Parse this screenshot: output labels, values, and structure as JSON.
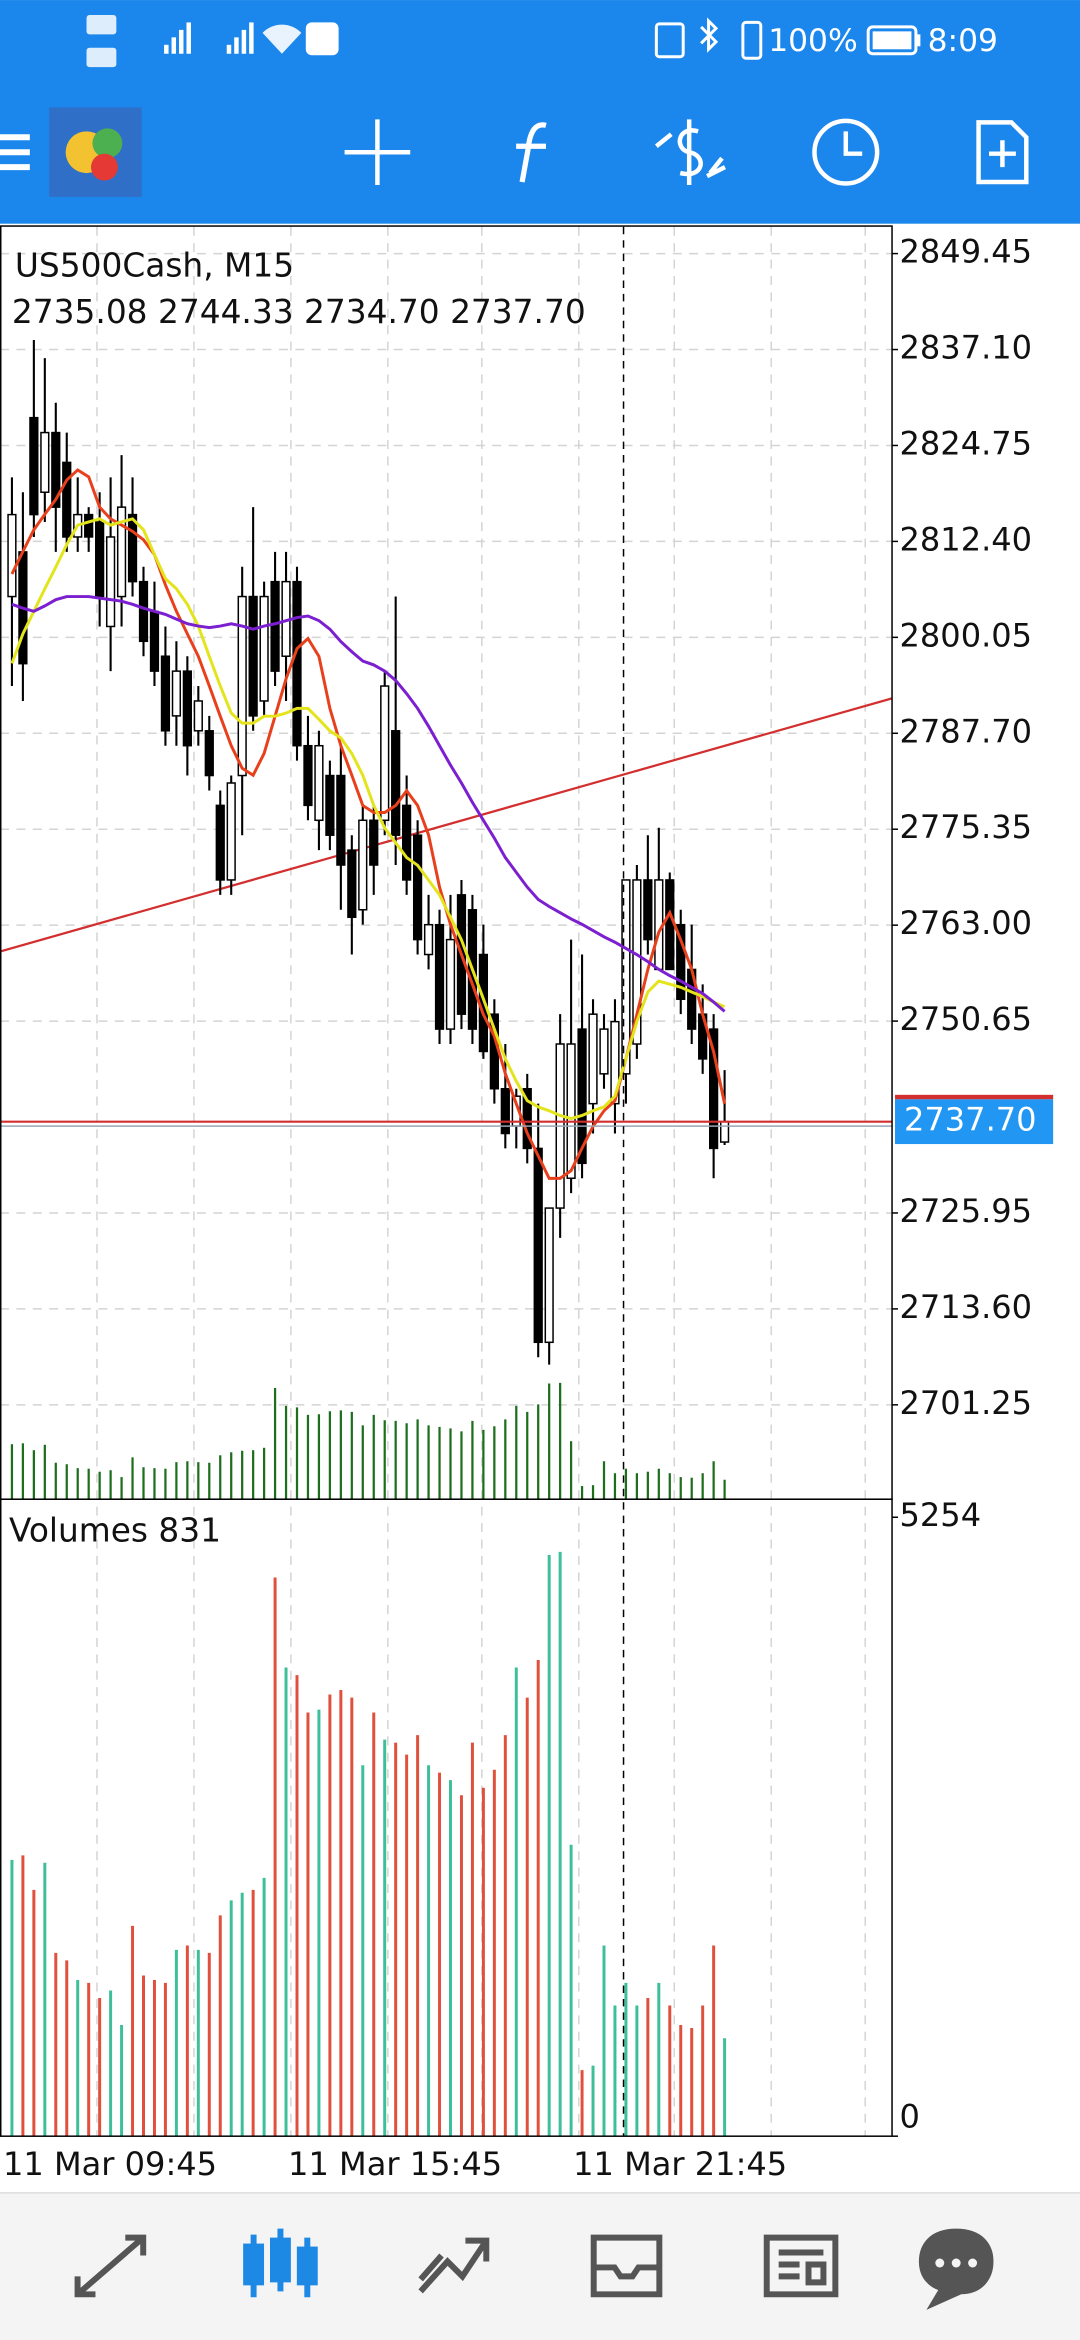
{
  "status_bar": {
    "battery": "100%",
    "time": "8:09"
  },
  "chart_data": [
    {
      "type": "candlestick",
      "title": "US500Cash, M15",
      "subtitle": "2735.08 2744.33 2734.70 2737.70",
      "categories": [
        "11 Mar 09:45",
        null,
        null,
        null,
        null,
        null,
        null,
        null,
        null,
        null,
        null,
        null,
        null,
        null,
        null,
        null,
        null,
        null,
        null,
        null,
        null,
        null,
        null,
        null,
        null,
        null,
        "11 Mar 15:45",
        null,
        null,
        null,
        null,
        null,
        null,
        null,
        null,
        null,
        null,
        null,
        null,
        null,
        null,
        null,
        null,
        null,
        null,
        null,
        null,
        null,
        null,
        null,
        null,
        null,
        "11 Mar 21:45",
        null,
        null,
        null,
        null,
        null,
        null,
        null,
        null,
        null,
        null,
        null,
        null,
        null
      ],
      "open": [
        2805.3,
        2811.05,
        2828.33,
        2818.73,
        2826.41,
        2822.57,
        2812.97,
        2815.85,
        2814.9,
        2801.45,
        2805.3,
        2815.85,
        2807.22,
        2803.37,
        2797.62,
        2789.94,
        2795.7,
        2788.02,
        2788.02,
        2778.42,
        2768.82,
        2782.26,
        2805.3,
        2791.86,
        2807.22,
        2797.62,
        2807.22,
        2786.1,
        2776.5,
        2782.26,
        2782.26,
        2772.66,
        2764.98,
        2776.5,
        2776.5,
        2788.02,
        2778.42,
        2774.58,
        2759.22,
        2763.06,
        2749.62,
        2766.9,
        2764.98,
        2759.22,
        2751.54,
        2741.94,
        2737.14,
        2741.94,
        2734.26,
        2709.3,
        2726.58,
        2730.42,
        2749.62,
        2740.02,
        2743.86,
        2740.02,
        2743.86,
        2747.7,
        2768.82,
        2757.3,
        2768.82,
        2763.06,
        2757.3,
        2751.54,
        2749.62,
        2735.08
      ],
      "high": [
        2820.65,
        2818.73,
        2838.32,
        2836.0,
        2830.25,
        2826.41,
        2820.65,
        2816.81,
        2818.73,
        2820.65,
        2823.5,
        2820.65,
        2809.13,
        2807.22,
        2801.45,
        2799.54,
        2797.62,
        2793.78,
        2789.94,
        2780.34,
        2782.26,
        2809.13,
        2816.81,
        2807.22,
        2811.05,
        2811.05,
        2809.13,
        2789.94,
        2788.02,
        2784.18,
        2786.1,
        2774.58,
        2778.42,
        2778.42,
        2795.7,
        2805.3,
        2782.26,
        2776.5,
        2766.9,
        2764.98,
        2766.9,
        2768.82,
        2766.9,
        2763.06,
        2753.46,
        2747.7,
        2741.94,
        2743.86,
        2740.02,
        2726.58,
        2751.54,
        2761.14,
        2759.22,
        2753.46,
        2751.54,
        2753.46,
        2768.82,
        2770.74,
        2774.58,
        2775.54,
        2769.78,
        2764.98,
        2763.06,
        2755.38,
        2751.54,
        2744.33
      ],
      "low": [
        2793.78,
        2791.86,
        2812.97,
        2814.9,
        2811.05,
        2811.05,
        2811.05,
        2811.05,
        2801.45,
        2795.7,
        2801.45,
        2805.3,
        2797.62,
        2793.78,
        2786.1,
        2786.1,
        2782.26,
        2786.1,
        2780.34,
        2766.9,
        2766.9,
        2774.58,
        2788.02,
        2789.94,
        2793.78,
        2791.86,
        2784.18,
        2776.5,
        2772.66,
        2772.66,
        2764.98,
        2759.22,
        2763.06,
        2766.9,
        2774.58,
        2770.74,
        2766.9,
        2759.22,
        2757.3,
        2747.7,
        2747.7,
        2749.62,
        2747.7,
        2745.78,
        2740.02,
        2734.26,
        2734.26,
        2732.34,
        2707.38,
        2706.43,
        2722.74,
        2728.5,
        2730.42,
        2736.18,
        2741.94,
        2736.18,
        2740.02,
        2745.78,
        2759.22,
        2757.3,
        2757.3,
        2751.54,
        2747.7,
        2743.86,
        2730.42,
        2734.7
      ],
      "close": [
        2815.85,
        2796.66,
        2815.85,
        2826.41,
        2816.81,
        2812.97,
        2815.85,
        2812.97,
        2805.3,
        2812.97,
        2816.81,
        2807.22,
        2799.54,
        2795.7,
        2788.02,
        2795.7,
        2786.1,
        2791.86,
        2782.26,
        2768.82,
        2781.3,
        2805.3,
        2789.94,
        2805.3,
        2795.7,
        2807.22,
        2786.1,
        2778.42,
        2786.1,
        2774.58,
        2770.74,
        2764.02,
        2776.5,
        2770.74,
        2793.78,
        2774.58,
        2768.82,
        2761.14,
        2763.06,
        2749.62,
        2761.14,
        2751.54,
        2749.62,
        2746.74,
        2741.94,
        2736.18,
        2740.98,
        2734.26,
        2709.3,
        2726.58,
        2747.7,
        2747.7,
        2732.34,
        2751.54,
        2749.62,
        2750.58,
        2768.82,
        2768.82,
        2761.14,
        2768.82,
        2757.3,
        2753.46,
        2749.62,
        2745.78,
        2734.26,
        2737.7
      ],
      "up_color": "#ffffff",
      "down_color": "#000000",
      "series": [
        {
          "color": "#e8401c",
          "values": [
            2808.2,
            2811.1,
            2813.9,
            2815.9,
            2817.8,
            2820.3,
            2821.6,
            2820.7,
            2816.8,
            2815.3,
            2814.5,
            2813.7,
            2812.6,
            2810.7,
            2806.8,
            2803.4,
            2800.5,
            2797.6,
            2793.8,
            2789.9,
            2786.1,
            2783.2,
            2782.3,
            2785.1,
            2789.9,
            2794.7,
            2798.6,
            2799.9,
            2797.6,
            2790.9,
            2786.1,
            2782.3,
            2778.4,
            2777.5,
            2777.5,
            2778.4,
            2780.3,
            2778.4,
            2774.6,
            2767.9,
            2763.1,
            2759.2,
            2755.4,
            2751.5,
            2748.7,
            2743.9,
            2740.0,
            2736.2,
            2733.3,
            2730.4,
            2730.4,
            2731.4,
            2734.3,
            2737.1,
            2739.1,
            2740.4,
            2745.8,
            2751.5,
            2757.3,
            2762.1,
            2764.6,
            2761.1,
            2757.3,
            2751.5,
            2746.7,
            2740.0
          ]
        },
        {
          "color": "#e4e41c",
          "values": [
            2796.7,
            2800.5,
            2803.4,
            2806.3,
            2809.1,
            2812.0,
            2814.5,
            2814.9,
            2815.3,
            2814.5,
            2814.9,
            2815.3,
            2813.9,
            2810.7,
            2807.6,
            2806.3,
            2804.3,
            2801.5,
            2797.6,
            2793.8,
            2790.3,
            2789.0,
            2789.0,
            2789.9,
            2789.9,
            2790.3,
            2790.9,
            2790.9,
            2789.5,
            2788.0,
            2787.1,
            2785.1,
            2782.3,
            2778.4,
            2775.5,
            2773.6,
            2771.7,
            2770.7,
            2768.8,
            2766.9,
            2764.0,
            2761.1,
            2757.3,
            2753.5,
            2749.6,
            2745.8,
            2742.9,
            2740.4,
            2739.6,
            2739.1,
            2738.5,
            2738.1,
            2738.5,
            2739.1,
            2739.6,
            2741.0,
            2745.8,
            2750.6,
            2754.4,
            2755.8,
            2755.4,
            2755.0,
            2754.4,
            2753.8,
            2753.1,
            2752.5
          ]
        },
        {
          "color": "#7b1fd0",
          "values": [
            2804.3,
            2803.8,
            2803.4,
            2804.1,
            2804.9,
            2805.3,
            2805.3,
            2805.3,
            2805.1,
            2804.9,
            2804.7,
            2804.3,
            2803.8,
            2803.4,
            2803.0,
            2802.4,
            2801.8,
            2801.5,
            2801.3,
            2801.5,
            2801.8,
            2801.5,
            2801.1,
            2801.5,
            2801.8,
            2802.2,
            2802.6,
            2802.8,
            2802.2,
            2801.1,
            2799.5,
            2798.2,
            2797.0,
            2796.5,
            2795.7,
            2794.5,
            2792.8,
            2790.9,
            2788.6,
            2786.1,
            2783.6,
            2781.3,
            2778.8,
            2776.5,
            2774.2,
            2771.7,
            2769.8,
            2767.9,
            2766.3,
            2765.4,
            2764.6,
            2763.8,
            2763.1,
            2762.3,
            2761.5,
            2760.8,
            2760.0,
            2759.2,
            2758.3,
            2757.3,
            2756.5,
            2755.8,
            2755.0,
            2754.2,
            2753.1,
            2751.9
          ]
        }
      ],
      "trendline": {
        "color": "#d32f2f",
        "values": [
          2759.6,
          2792.2
        ]
      },
      "price_line": {
        "value": 2737.7,
        "label": "2737.70",
        "color": "#d32f2f",
        "label_color": "#2196f3"
      },
      "ylim": [
        2689.1,
        2852.9
      ],
      "yticks": [
        2849.45,
        {
          "value": 2837.1,
          "label": "2837.10"
        },
        2824.75,
        {
          "value": 2812.4,
          "label": "2812.40"
        },
        2800.05,
        {
          "value": 2787.7,
          "label": "2787.70"
        },
        2775.35,
        {
          "value": 2763,
          "label": "2763.00"
        },
        2750.65,
        2725.95,
        {
          "value": 2713.6,
          "label": "2713.60"
        },
        2701.25
      ],
      "grid": true
    },
    {
      "type": "bar",
      "title": "Volumes 831",
      "values": [
        2346,
        2384,
        2091,
        2321,
        1556,
        1492,
        1326,
        1301,
        1173,
        1237,
        944,
        1785,
        1364,
        1326,
        1301,
        1581,
        1619,
        1581,
        1556,
        1874,
        2002,
        2066,
        2091,
        2193,
        4743,
        3978,
        3914,
        3596,
        3621,
        3749,
        3787,
        3723,
        3149,
        3596,
        3366,
        3341,
        3239,
        3404,
        3149,
        3086,
        3022,
        2894,
        3341,
        2958,
        3111,
        3404,
        3978,
        3723,
        4042,
        4934,
        4960,
        2474,
        561,
        599,
        1619,
        1109,
        1301,
        1109,
        1173,
        1301,
        1109,
        944,
        918,
        1109,
        1619,
        831
      ],
      "up_color": "#3dbf9a",
      "down_color": "#e0503c",
      "overlay_color": "#1d6e1d",
      "ylim": [
        0,
        5407
      ],
      "yticks": [
        0,
        5254
      ]
    }
  ]
}
